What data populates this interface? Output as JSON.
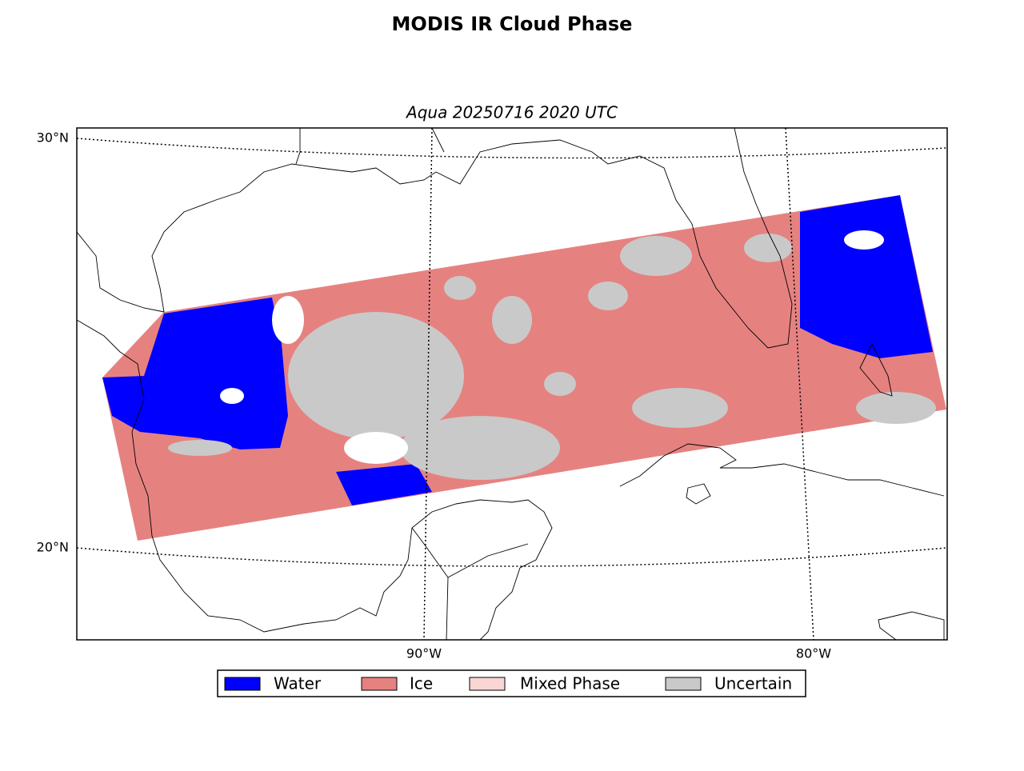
{
  "header": {
    "title": "MODIS IR Cloud Phase",
    "subtitle": "Aqua 20250716 2020 UTC"
  },
  "map": {
    "lat_labels": [
      "30°N",
      "20°N"
    ],
    "lon_labels": [
      "90°W",
      "80°W"
    ]
  },
  "legend": {
    "items": [
      {
        "label": "Water",
        "color": "#0000ff"
      },
      {
        "label": "Ice",
        "color": "#e58280"
      },
      {
        "label": "Mixed Phase",
        "color": "#f9d6d3"
      },
      {
        "label": "Uncertain",
        "color": "#c9c9c9"
      }
    ]
  }
}
